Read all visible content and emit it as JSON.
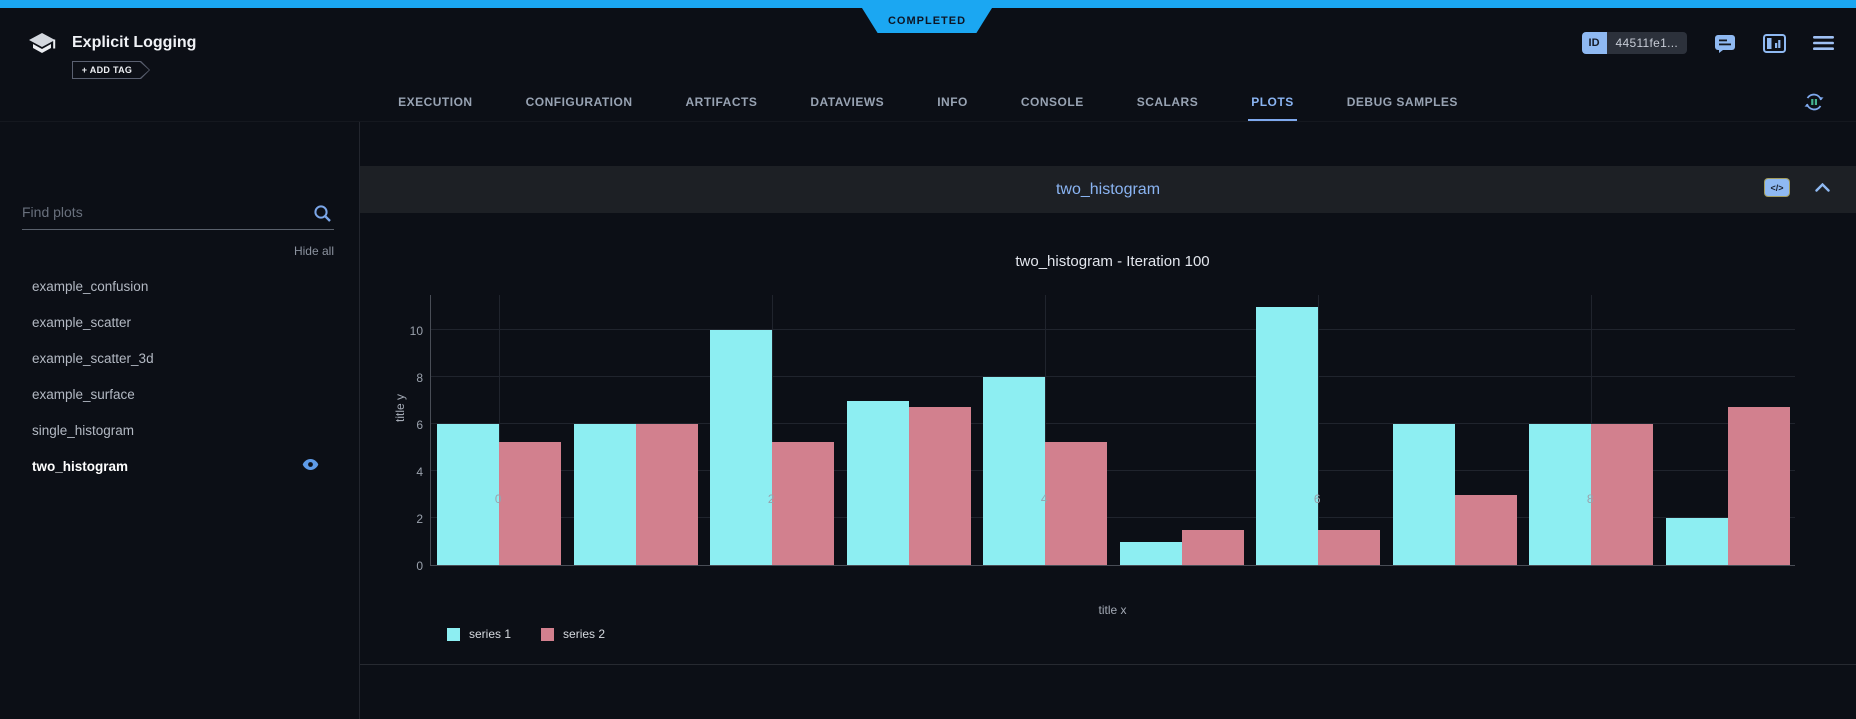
{
  "header": {
    "app_title": "Explicit Logging",
    "status": "COMPLETED",
    "add_tag_label": "+ ADD TAG",
    "id_label": "ID",
    "id_value": "44511fe1..."
  },
  "tabs": {
    "items": [
      "EXECUTION",
      "CONFIGURATION",
      "ARTIFACTS",
      "DATAVIEWS",
      "INFO",
      "CONSOLE",
      "SCALARS",
      "PLOTS",
      "DEBUG SAMPLES"
    ],
    "active": "PLOTS"
  },
  "sidebar": {
    "search_placeholder": "Find plots",
    "hide_all_label": "Hide all",
    "plots": [
      {
        "name": "example_confusion",
        "selected": false
      },
      {
        "name": "example_scatter",
        "selected": false
      },
      {
        "name": "example_scatter_3d",
        "selected": false
      },
      {
        "name": "example_surface",
        "selected": false
      },
      {
        "name": "single_histogram",
        "selected": false
      },
      {
        "name": "two_histogram",
        "selected": true
      }
    ]
  },
  "widget": {
    "title": "two_histogram",
    "code_badge": "</>"
  },
  "chart_data": {
    "type": "bar",
    "title": "two_histogram - Iteration 100",
    "xlabel": "title x",
    "ylabel": "title y",
    "x": [
      0,
      1,
      2,
      3,
      4,
      5,
      6,
      7,
      8,
      9
    ],
    "series": [
      {
        "name": "series 1",
        "color": "#8deef2",
        "values": [
          6,
          6,
          10,
          7,
          8,
          1,
          11,
          6,
          6,
          2
        ]
      },
      {
        "name": "series 2",
        "color": "#d2808e",
        "values": [
          5.25,
          6,
          5.25,
          6.75,
          5.25,
          1.5,
          1.5,
          3,
          6,
          6.75
        ]
      }
    ],
    "ylim": [
      0,
      11.55
    ],
    "yticks": [
      0,
      2,
      4,
      6,
      8,
      10
    ],
    "xticks": [
      0,
      2,
      4,
      6,
      8
    ],
    "grid": true,
    "legend_position": "bottom-left"
  },
  "colors": {
    "accent_blue": "#1ba7f2",
    "active_tab": "#8ab4f2",
    "widget_header_bg": "#1d2025",
    "page_bg": "#0c0f16"
  }
}
